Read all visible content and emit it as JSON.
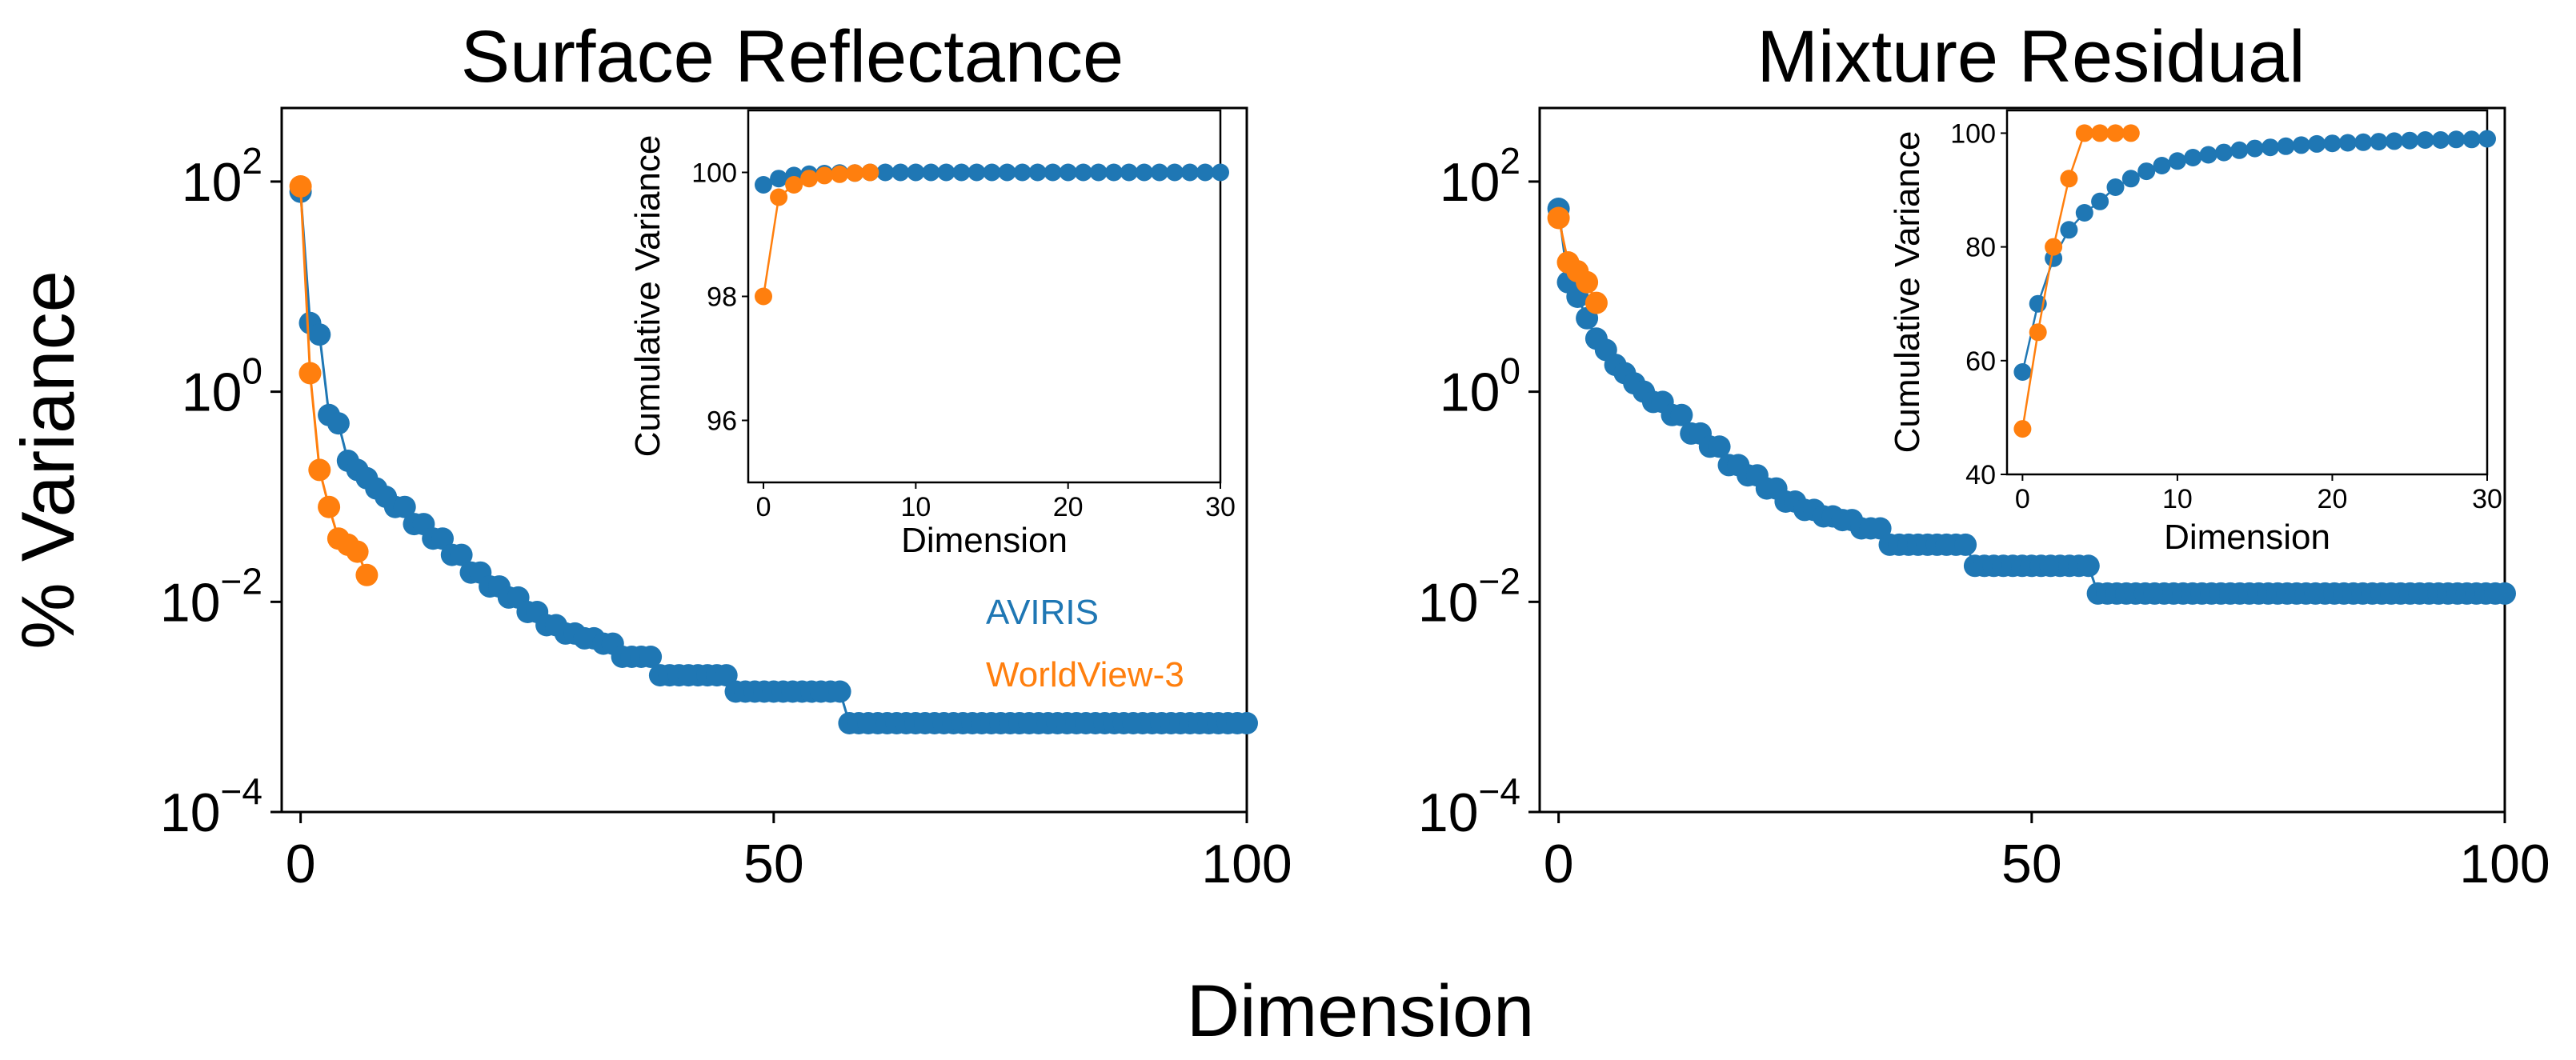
{
  "figure": {
    "shared_ylabel": "% Variance",
    "shared_xlabel": "Dimension"
  },
  "colors": {
    "aviris": "#1f77b4",
    "worldview": "#ff7f0e"
  },
  "legend": [
    {
      "name": "AVIRIS",
      "color": "#1f77b4"
    },
    {
      "name": "WorldView-3",
      "color": "#ff7f0e"
    }
  ],
  "chart_data": [
    {
      "type": "scatter",
      "title": "Surface Reflectance",
      "xlabel": "Dimension",
      "ylabel": "% Variance",
      "yscale": "log",
      "xlim": [
        -2,
        100
      ],
      "ylim_exp": [
        -4,
        2.7
      ],
      "xticks": [
        "0",
        "50",
        "100"
      ],
      "yticks_exp": [
        2,
        0,
        -2,
        -4
      ],
      "ytick_base": "10",
      "series": [
        {
          "name": "AVIRIS",
          "color": "#1f77b4",
          "steps": [
            [
              0,
              80
            ],
            [
              1,
              4.5
            ],
            [
              2,
              3.5
            ],
            [
              3,
              0.6
            ],
            [
              4,
              0.5
            ],
            [
              5,
              0.22
            ],
            [
              6,
              0.18
            ],
            [
              7,
              0.15
            ],
            [
              8,
              0.12
            ],
            [
              9,
              0.1
            ],
            [
              10,
              0.08
            ],
            [
              12,
              0.055
            ],
            [
              14,
              0.04
            ],
            [
              16,
              0.028
            ],
            [
              18,
              0.019
            ],
            [
              20,
              0.014
            ],
            [
              22,
              0.011
            ],
            [
              24,
              0.008
            ],
            [
              26,
              0.006
            ],
            [
              28,
              0.005
            ],
            [
              30,
              0.0045
            ],
            [
              32,
              0.004
            ],
            [
              34,
              0.003
            ],
            [
              38,
              0.002
            ],
            [
              46,
              0.0014
            ],
            [
              58,
              0.0007
            ],
            [
              100,
              0.0007
            ]
          ]
        },
        {
          "name": "WorldView-3",
          "color": "#ff7f0e",
          "x": [
            0,
            1,
            2,
            3,
            4,
            5,
            6,
            7
          ],
          "y": [
            90,
            1.5,
            0.18,
            0.08,
            0.04,
            0.035,
            0.03,
            0.018
          ]
        }
      ],
      "inset": {
        "type": "scatter",
        "xlabel": "Dimension",
        "ylabel": "Cumulative Variance",
        "xlim": [
          -1,
          30
        ],
        "ylim": [
          95,
          101
        ],
        "xticks": [
          "0",
          "10",
          "20",
          "30"
        ],
        "yticks": [
          "96",
          "98",
          "100"
        ],
        "series": [
          {
            "name": "AVIRIS",
            "color": "#1f77b4",
            "x": [
              0,
              1,
              2,
              3,
              4,
              5,
              6,
              7,
              8,
              9,
              10,
              11,
              12,
              13,
              14,
              15,
              16,
              17,
              18,
              19,
              20,
              21,
              22,
              23,
              24,
              25,
              26,
              27,
              28,
              29,
              30
            ],
            "y": [
              99.8,
              99.9,
              99.95,
              99.97,
              99.98,
              99.99,
              99.99,
              100,
              100,
              100,
              100,
              100,
              100,
              100,
              100,
              100,
              100,
              100,
              100,
              100,
              100,
              100,
              100,
              100,
              100,
              100,
              100,
              100,
              100,
              100,
              100
            ]
          },
          {
            "name": "WorldView-3",
            "color": "#ff7f0e",
            "x": [
              0,
              1,
              2,
              3,
              4,
              5,
              6,
              7
            ],
            "y": [
              98.0,
              99.6,
              99.8,
              99.9,
              99.95,
              99.97,
              99.99,
              100
            ]
          }
        ]
      }
    },
    {
      "type": "scatter",
      "title": "Mixture Residual",
      "xlabel": "Dimension",
      "ylabel": "% Variance",
      "yscale": "log",
      "xlim": [
        -2,
        100
      ],
      "ylim_exp": [
        -4,
        2.7
      ],
      "xticks": [
        "0",
        "50",
        "100"
      ],
      "yticks_exp": [
        2,
        0,
        -2,
        -4
      ],
      "ytick_base": "10",
      "series": [
        {
          "name": "AVIRIS",
          "color": "#1f77b4",
          "steps": [
            [
              0,
              55
            ],
            [
              1,
              11
            ],
            [
              2,
              8
            ],
            [
              3,
              5
            ],
            [
              4,
              3.2
            ],
            [
              5,
              2.5
            ],
            [
              6,
              1.8
            ],
            [
              7,
              1.5
            ],
            [
              8,
              1.2
            ],
            [
              9,
              1.0
            ],
            [
              10,
              0.8
            ],
            [
              12,
              0.6
            ],
            [
              14,
              0.4
            ],
            [
              16,
              0.3
            ],
            [
              18,
              0.2
            ],
            [
              20,
              0.16
            ],
            [
              22,
              0.12
            ],
            [
              24,
              0.09
            ],
            [
              26,
              0.075
            ],
            [
              28,
              0.065
            ],
            [
              30,
              0.06
            ],
            [
              32,
              0.05
            ],
            [
              35,
              0.035
            ],
            [
              44,
              0.022
            ],
            [
              57,
              0.012
            ],
            [
              100,
              0.012
            ]
          ]
        },
        {
          "name": "WorldView-3",
          "color": "#ff7f0e",
          "x": [
            0,
            1,
            2,
            3,
            4
          ],
          "y": [
            45,
            17,
            14,
            11,
            7
          ]
        }
      ],
      "inset": {
        "type": "scatter",
        "xlabel": "Dimension",
        "ylabel": "Cumulative Variance",
        "xlim": [
          -1,
          30
        ],
        "ylim": [
          40,
          104
        ],
        "xticks": [
          "0",
          "10",
          "20",
          "30"
        ],
        "yticks": [
          "40",
          "60",
          "80",
          "100"
        ],
        "series": [
          {
            "name": "AVIRIS",
            "color": "#1f77b4",
            "x": [
              0,
              1,
              2,
              3,
              4,
              5,
              6,
              7,
              8,
              9,
              10,
              11,
              12,
              13,
              14,
              15,
              16,
              17,
              18,
              19,
              20,
              21,
              22,
              23,
              24,
              25,
              26,
              27,
              28,
              29,
              30
            ],
            "y": [
              58,
              70,
              78,
              83,
              86,
              88,
              90.5,
              92,
              93.3,
              94.3,
              95.1,
              95.7,
              96.2,
              96.6,
              97,
              97.3,
              97.5,
              97.7,
              97.9,
              98.1,
              98.2,
              98.3,
              98.4,
              98.5,
              98.6,
              98.7,
              98.8,
              98.8,
              98.9,
              98.9,
              99
            ]
          },
          {
            "name": "WorldView-3",
            "color": "#ff7f0e",
            "x": [
              0,
              1,
              2,
              3,
              4,
              5,
              6,
              7
            ],
            "y": [
              48,
              65,
              80,
              92,
              100,
              100,
              100,
              100
            ]
          }
        ]
      }
    }
  ]
}
